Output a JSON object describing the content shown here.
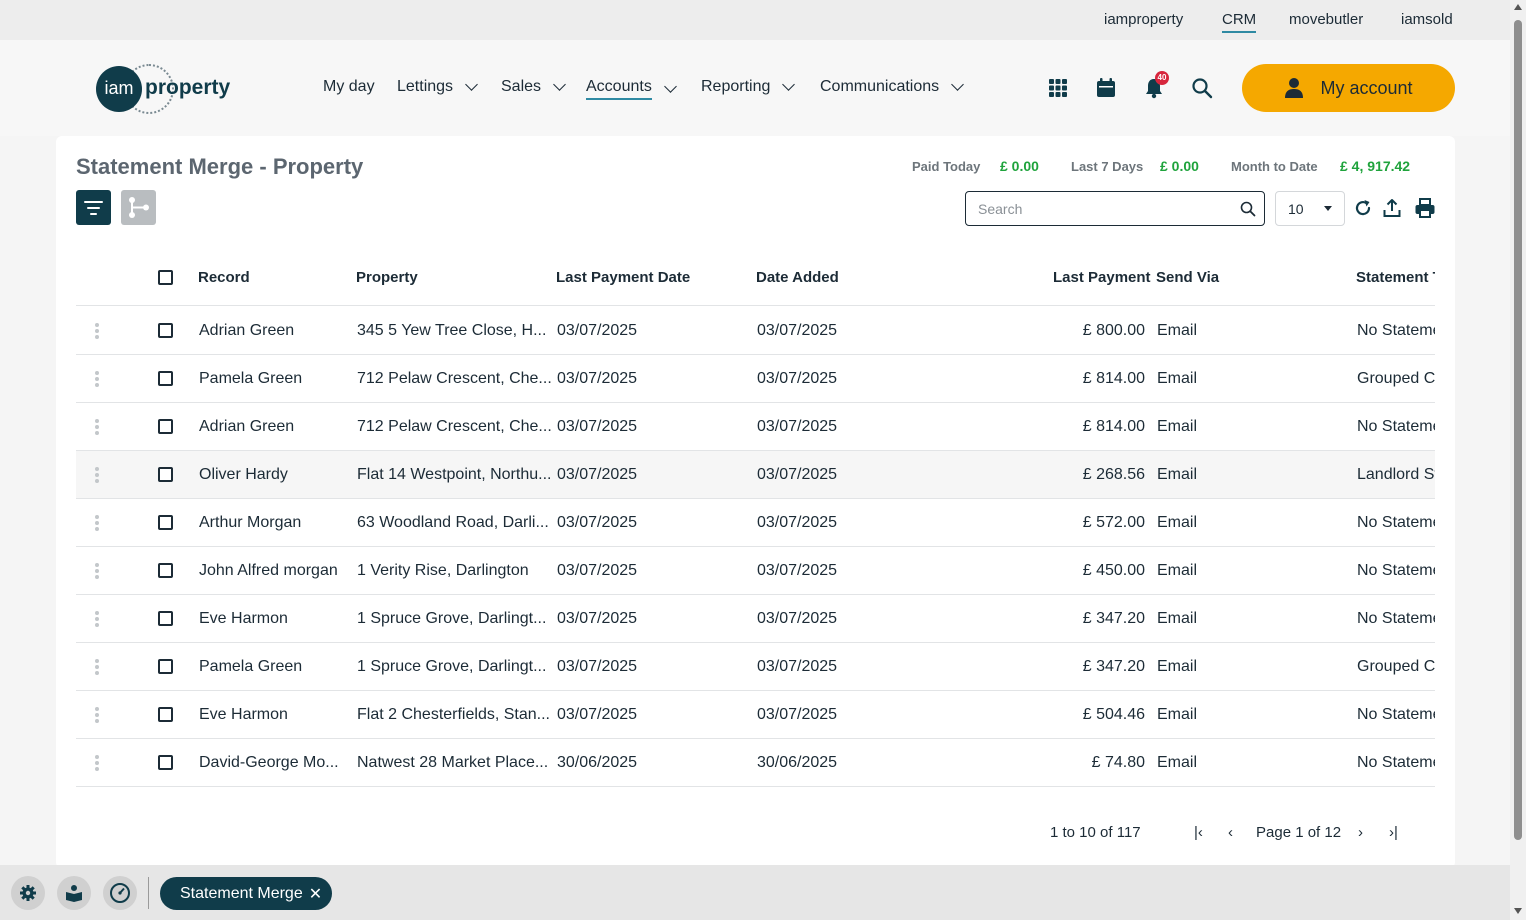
{
  "topbar": {
    "links": [
      "iamproperty",
      "CRM",
      "movebutler",
      "iamsold"
    ],
    "active": "CRM"
  },
  "header": {
    "logo": {
      "mark": "iam",
      "word": "property"
    },
    "nav": [
      {
        "label": "My day",
        "dropdown": false
      },
      {
        "label": "Lettings",
        "dropdown": true
      },
      {
        "label": "Sales",
        "dropdown": true
      },
      {
        "label": "Accounts",
        "dropdown": true,
        "active": true
      },
      {
        "label": "Reporting",
        "dropdown": true
      },
      {
        "label": "Communications",
        "dropdown": true
      }
    ],
    "icons": [
      "apps-grid-icon",
      "calendar-icon",
      "bell-icon",
      "search-icon"
    ],
    "notification_count": "40",
    "account_label": "My account"
  },
  "page": {
    "title": "Statement Merge - Property",
    "stats": [
      {
        "label": "Paid Today",
        "value": "£ 0.00"
      },
      {
        "label": "Last 7 Days",
        "value": "£ 0.00"
      },
      {
        "label": "Month to Date",
        "value": "£ 4, 917.42"
      }
    ],
    "search_placeholder": "Search",
    "page_size": "10",
    "accent_color": "#103c4a",
    "positive_color": "#1fa33c"
  },
  "table": {
    "columns": [
      "Record",
      "Property",
      "Last Payment Date",
      "Date Added",
      "Last Payment",
      "Send Via",
      "Statement T"
    ],
    "rows": [
      {
        "record": "Adrian Green",
        "property": "345 5 Yew Tree Close, H...",
        "last_payment_date": "03/07/2025",
        "date_added": "03/07/2025",
        "last_payment": "£ 800.00",
        "send_via": "Email",
        "statement": "No Stateme"
      },
      {
        "record": "Pamela Green",
        "property": "712 Pelaw Crescent, Che...",
        "last_payment_date": "03/07/2025",
        "date_added": "03/07/2025",
        "last_payment": "£ 814.00",
        "send_via": "Email",
        "statement": "Grouped C"
      },
      {
        "record": "Adrian Green",
        "property": "712 Pelaw Crescent, Che...",
        "last_payment_date": "03/07/2025",
        "date_added": "03/07/2025",
        "last_payment": "£ 814.00",
        "send_via": "Email",
        "statement": "No Stateme"
      },
      {
        "record": "Oliver Hardy",
        "property": "Flat 14 Westpoint, Northu...",
        "last_payment_date": "03/07/2025",
        "date_added": "03/07/2025",
        "last_payment": "£ 268.56",
        "send_via": "Email",
        "statement": "Landlord St"
      },
      {
        "record": "Arthur Morgan",
        "property": "63 Woodland Road, Darli...",
        "last_payment_date": "03/07/2025",
        "date_added": "03/07/2025",
        "last_payment": "£ 572.00",
        "send_via": "Email",
        "statement": "No Stateme"
      },
      {
        "record": "John Alfred morgan",
        "property": "1 Verity Rise, Darlington",
        "last_payment_date": "03/07/2025",
        "date_added": "03/07/2025",
        "last_payment": "£ 450.00",
        "send_via": "Email",
        "statement": "No Stateme"
      },
      {
        "record": "Eve Harmon",
        "property": "1 Spruce Grove, Darlingt...",
        "last_payment_date": "03/07/2025",
        "date_added": "03/07/2025",
        "last_payment": "£ 347.20",
        "send_via": "Email",
        "statement": "No Stateme"
      },
      {
        "record": "Pamela Green",
        "property": "1 Spruce Grove, Darlingt...",
        "last_payment_date": "03/07/2025",
        "date_added": "03/07/2025",
        "last_payment": "£ 347.20",
        "send_via": "Email",
        "statement": "Grouped C"
      },
      {
        "record": "Eve Harmon",
        "property": "Flat 2 Chesterfields, Stan...",
        "last_payment_date": "03/07/2025",
        "date_added": "03/07/2025",
        "last_payment": "£ 504.46",
        "send_via": "Email",
        "statement": "No Stateme"
      },
      {
        "record": "David-George Mo...",
        "property": "Natwest 28 Market Place...",
        "last_payment_date": "30/06/2025",
        "date_added": "30/06/2025",
        "last_payment": "£ 74.80",
        "send_via": "Email",
        "statement": "No Stateme"
      }
    ]
  },
  "pager": {
    "info": "1 to 10 of 117",
    "first": "|‹",
    "prev": "‹",
    "page": "Page 1 of 12",
    "next": "›",
    "last": "›|"
  },
  "bottombar": {
    "icons": [
      "settings-icon",
      "reader-icon",
      "dashboard-icon"
    ],
    "tab_label": "Statement Merge",
    "tab_close": "✕"
  }
}
